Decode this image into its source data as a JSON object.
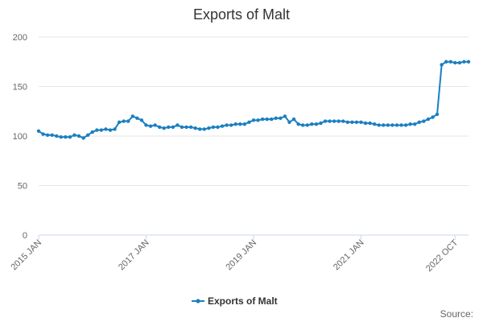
{
  "chart_data": {
    "type": "line",
    "title": "Exports of Malt",
    "xlabel": "",
    "ylabel": "",
    "ylim": [
      0,
      200
    ],
    "y_ticks": [
      0,
      50,
      100,
      150,
      200
    ],
    "x_tick_labels": [
      "2015 JAN",
      "2017 JAN",
      "2019 JAN",
      "2021 JAN",
      "2022 OCT"
    ],
    "x_tick_indices": [
      0,
      24,
      48,
      72,
      93
    ],
    "x_axis_labels_rotated": true,
    "legend_position": "bottom-center",
    "grid": true,
    "colors": {
      "series": "#1a7fc1"
    },
    "series": [
      {
        "name": "Exports of Malt",
        "values": [
          105,
          102,
          101,
          101,
          100,
          99,
          99,
          99,
          101,
          100,
          98,
          101,
          104,
          106,
          106,
          107,
          106,
          107,
          114,
          115,
          115,
          120,
          118,
          116,
          111,
          110,
          111,
          109,
          108,
          109,
          109,
          111,
          109,
          109,
          109,
          108,
          107,
          107,
          108,
          109,
          109,
          110,
          111,
          111,
          112,
          112,
          112,
          114,
          116,
          116,
          117,
          117,
          117,
          118,
          118,
          120,
          114,
          117,
          112,
          111,
          111,
          112,
          112,
          113,
          115,
          115,
          115,
          115,
          115,
          114,
          114,
          114,
          114,
          113,
          113,
          112,
          111,
          111,
          111,
          111,
          111,
          111,
          111,
          112,
          112,
          114,
          115,
          117,
          119,
          122,
          172,
          175,
          175,
          174,
          174,
          175,
          175
        ]
      }
    ]
  },
  "legend": {
    "label": "Exports of Malt"
  },
  "source": {
    "label": "Source:"
  }
}
